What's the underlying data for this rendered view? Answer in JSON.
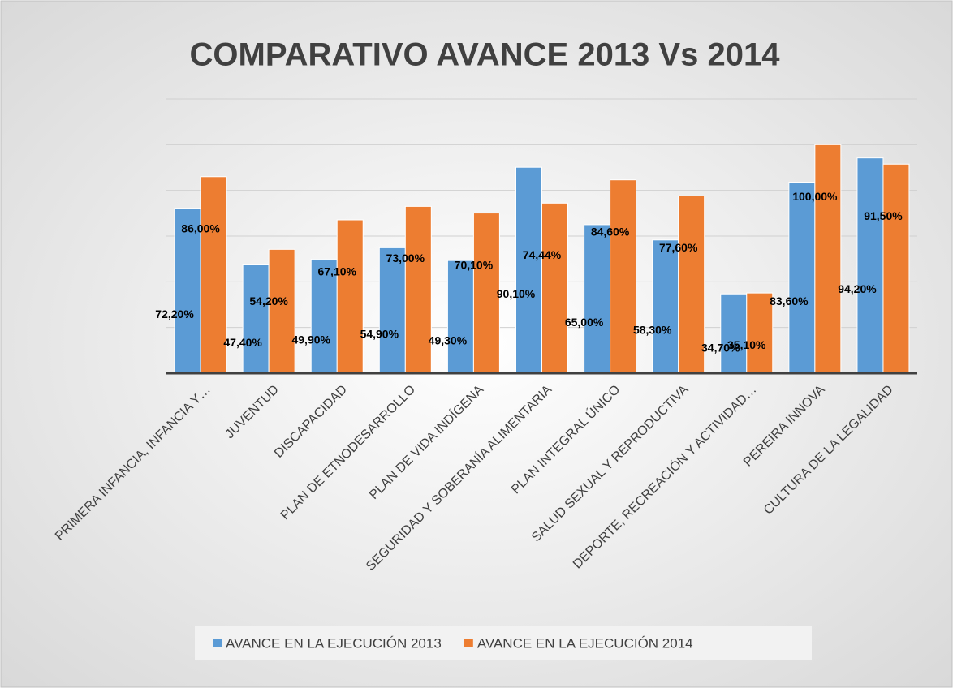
{
  "chart_data": {
    "type": "bar",
    "title": "COMPARATIVO AVANCE 2013 Vs 2014",
    "categories": [
      "PRIMERA INFANCIA, INFANCIA Y…",
      "JUVENTUD",
      "DISCAPACIDAD",
      "PLAN DE ETNODESARROLLO",
      "PLAN DE VIDA INDÍGENA",
      "SEGURIDAD Y SOBERANÍA ALIMENTARIA",
      "PLAN INTEGRAL ÚNICO",
      "SALUD SEXUAL Y REPRODUCTIVA",
      "DEPORTE, RECREACIÓN Y ACTIVIDAD…",
      "PEREIRA INNOVA",
      "CULTURA DE LA LEGALIDAD"
    ],
    "series": [
      {
        "name": "AVANCE EN LA EJECUCIÓN 2013",
        "color": "#5b9bd5",
        "values": [
          72.2,
          47.4,
          49.9,
          54.9,
          49.3,
          90.1,
          65.0,
          58.3,
          34.7,
          83.6,
          94.2
        ],
        "value_labels": [
          "72,20%",
          "47,40%",
          "49,90%",
          "54,90%",
          "49,30%",
          "90,10%",
          "65,00%",
          "58,30%",
          "34,70%",
          "83,60%",
          "94,20%"
        ]
      },
      {
        "name": "AVANCE EN LA EJECUCIÓN 2014",
        "color": "#ed7d31",
        "values": [
          86.0,
          54.2,
          67.1,
          73.0,
          70.1,
          74.44,
          84.6,
          77.6,
          35.1,
          100.0,
          91.5
        ],
        "value_labels": [
          "86,00%",
          "54,20%",
          "67,10%",
          "73,00%",
          "70,10%",
          "74,44%",
          "84,60%",
          "77,60%",
          "35,10%",
          "100,00%",
          "91,50%"
        ]
      }
    ],
    "ylim": [
      0,
      120
    ],
    "yticks": [
      0,
      20,
      40,
      60,
      80,
      100,
      120
    ],
    "grid": true,
    "legend": "bottom"
  }
}
